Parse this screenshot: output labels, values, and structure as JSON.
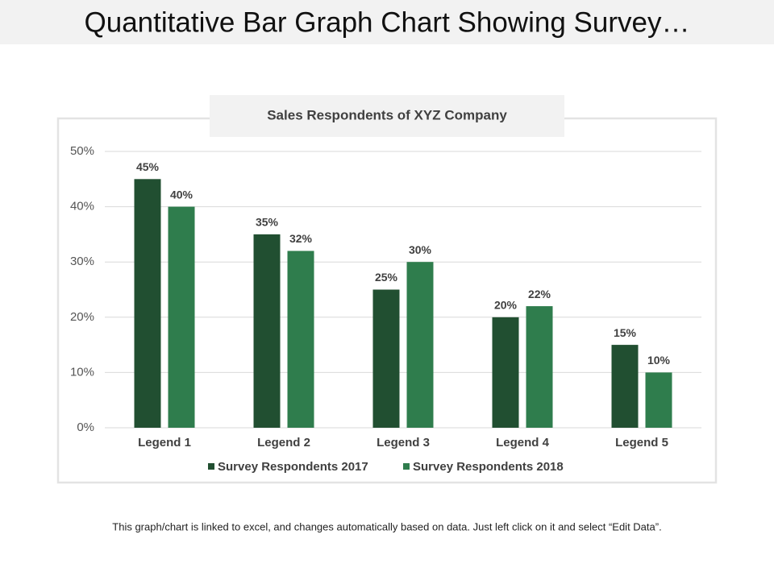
{
  "header": {
    "title": "Quantitative Bar Graph Chart Showing Survey…"
  },
  "chart_data": {
    "type": "bar",
    "title": "Sales Respondents of XYZ Company",
    "categories": [
      "Legend 1",
      "Legend 2",
      "Legend 3",
      "Legend 4",
      "Legend 5"
    ],
    "series": [
      {
        "name": "Survey Respondents 2017",
        "color": "#214f31",
        "values": [
          45,
          35,
          25,
          20,
          15
        ],
        "value_labels": [
          "45%",
          "35%",
          "25%",
          "20%",
          "15%"
        ]
      },
      {
        "name": "Survey Respondents 2018",
        "color": "#2f7d4d",
        "values": [
          40,
          32,
          30,
          22,
          10
        ],
        "value_labels": [
          "40%",
          "32%",
          "30%",
          "22%",
          "10%"
        ]
      }
    ],
    "ylim": [
      0,
      50
    ],
    "yticks": [
      {
        "value": 0,
        "label": "0%"
      },
      {
        "value": 10,
        "label": "10%"
      },
      {
        "value": 20,
        "label": "20%"
      },
      {
        "value": 30,
        "label": "30%"
      },
      {
        "value": 40,
        "label": "40%"
      },
      {
        "value": 50,
        "label": "50%"
      }
    ],
    "grid": true,
    "legend": "bottom"
  },
  "footer": {
    "note": "This graph/chart is linked to excel, and changes automatically based on data. Just left click on it and select “Edit Data”."
  }
}
